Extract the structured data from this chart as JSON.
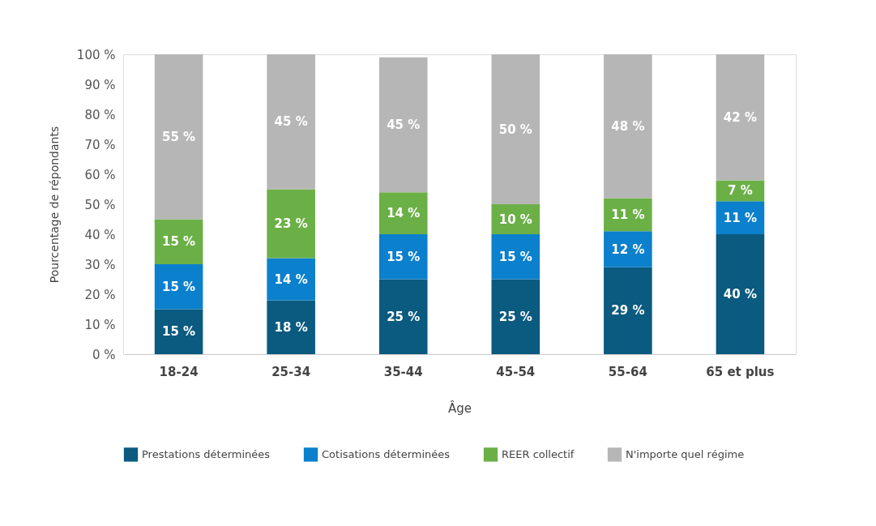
{
  "chart_data": {
    "type": "bar",
    "stacked": true,
    "xlabel": "Âge",
    "ylabel": "Pourcentage de répondants",
    "categories": [
      "18-24",
      "25-34",
      "35-44",
      "45-54",
      "55-64",
      "65 et plus"
    ],
    "ylim": [
      0,
      100
    ],
    "yticks": [
      {
        "value": 0,
        "label": "0 %"
      },
      {
        "value": 10,
        "label": "10 %"
      },
      {
        "value": 20,
        "label": "20 %"
      },
      {
        "value": 30,
        "label": "30 %"
      },
      {
        "value": 40,
        "label": "40 %"
      },
      {
        "value": 50,
        "label": "50 %"
      },
      {
        "value": 60,
        "label": "60 %"
      },
      {
        "value": 70,
        "label": "70 %"
      },
      {
        "value": 80,
        "label": "80 %"
      },
      {
        "value": 90,
        "label": "90 %"
      },
      {
        "value": 100,
        "label": "100 %"
      }
    ],
    "grid": false,
    "legend": "bottom",
    "series": [
      {
        "name": "Prestations déterminées",
        "color": "#0b5a80",
        "values": [
          15,
          18,
          25,
          25,
          29,
          40
        ],
        "value_labels": [
          "15 %",
          "18 %",
          "25 %",
          "25 %",
          "29 %",
          "40 %"
        ]
      },
      {
        "name": "Cotisations déterminées",
        "color": "#0b80cc",
        "values": [
          15,
          14,
          15,
          15,
          12,
          11
        ],
        "value_labels": [
          "15 %",
          "14 %",
          "15 %",
          "15 %",
          "12 %",
          "11 %"
        ]
      },
      {
        "name": "REER collectif",
        "color": "#6bb046",
        "values": [
          15,
          23,
          14,
          10,
          11,
          7
        ],
        "value_labels": [
          "15 %",
          "23 %",
          "14 %",
          "10 %",
          "11 %",
          "7 %"
        ]
      },
      {
        "name": "N'importe quel régime",
        "color": "#b6b6b6",
        "values": [
          55,
          45,
          45,
          50,
          48,
          42
        ],
        "value_labels": [
          "55 %",
          "45 %",
          "45 %",
          "50 %",
          "48 %",
          "42 %"
        ]
      }
    ]
  }
}
